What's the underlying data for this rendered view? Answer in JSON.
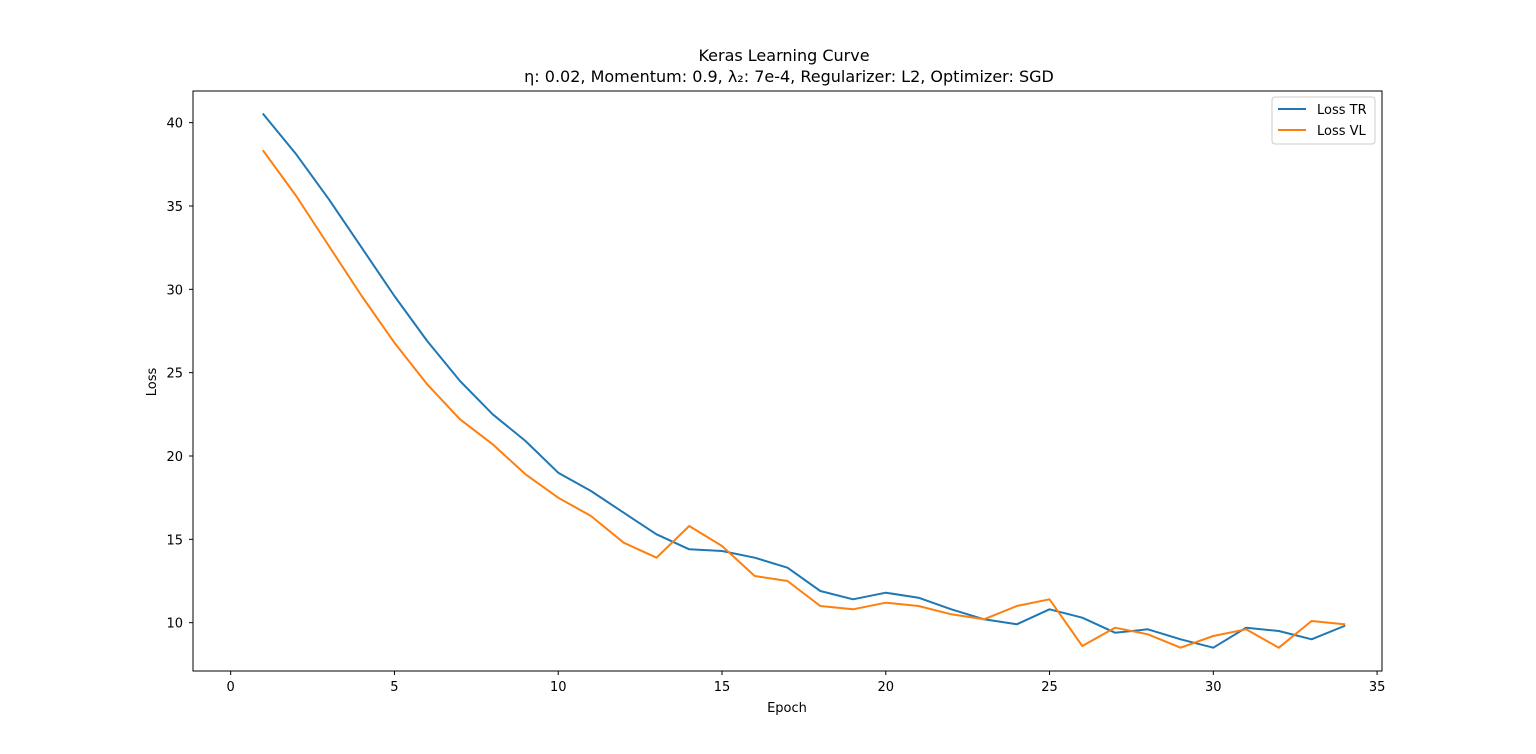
{
  "chart_data": {
    "type": "line",
    "title": "Keras Learning Curve",
    "subtitle": "η: 0.02, Momentum: 0.9, λ₂: 7e-4, Regularizer: L2, Optimizer: SGD",
    "xlabel": "Epoch",
    "ylabel": "Loss",
    "xlim": [
      -1.15,
      35.15
    ],
    "ylim": [
      7.1,
      41.9
    ],
    "xticks": [
      0,
      5,
      10,
      15,
      20,
      25,
      30,
      35
    ],
    "yticks": [
      10,
      15,
      20,
      25,
      30,
      35,
      40
    ],
    "grid": false,
    "legend_position": "top-right",
    "x": [
      1,
      2,
      3,
      4,
      5,
      6,
      7,
      8,
      9,
      10,
      11,
      12,
      13,
      14,
      15,
      16,
      17,
      18,
      19,
      20,
      21,
      22,
      23,
      24,
      25,
      26,
      27,
      28,
      29,
      30,
      31,
      32,
      33,
      34
    ],
    "series": [
      {
        "name": "Loss TR",
        "color": "#1f77b4",
        "values": [
          40.5,
          38.1,
          35.4,
          32.5,
          29.6,
          26.9,
          24.5,
          22.5,
          20.9,
          19.0,
          17.9,
          16.6,
          15.3,
          14.4,
          14.3,
          13.9,
          13.3,
          11.9,
          11.4,
          11.8,
          11.5,
          10.8,
          10.2,
          9.9,
          10.8,
          10.3,
          9.4,
          9.6,
          9.0,
          8.5,
          9.7,
          9.5,
          9.0,
          9.8
        ]
      },
      {
        "name": "Loss VL",
        "color": "#ff7f0e",
        "values": [
          38.3,
          35.6,
          32.6,
          29.6,
          26.8,
          24.3,
          22.2,
          20.7,
          18.9,
          17.5,
          16.4,
          14.8,
          13.9,
          15.8,
          14.6,
          12.8,
          12.5,
          11.0,
          10.8,
          11.2,
          11.0,
          10.5,
          10.2,
          11.0,
          11.4,
          8.6,
          9.7,
          9.3,
          8.5,
          9.2,
          9.6,
          8.5,
          10.1,
          9.9
        ]
      }
    ]
  }
}
